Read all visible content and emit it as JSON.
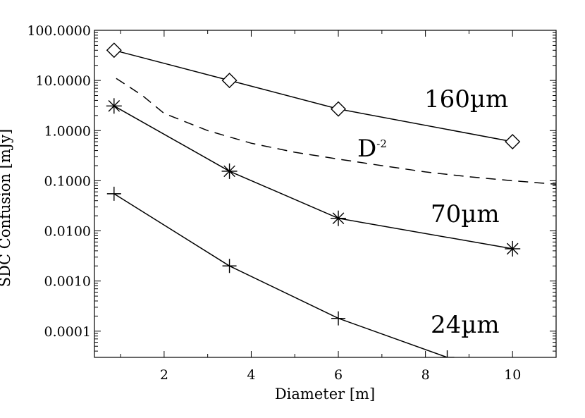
{
  "chart_data": {
    "type": "line",
    "title": "",
    "xlabel": "Diameter [m]",
    "ylabel": "SDC Confusion [mJy]",
    "xlim": [
      0.4,
      11
    ],
    "ylim": [
      3e-05,
      100
    ],
    "y_scale": "log",
    "x_ticks": [
      2,
      4,
      6,
      8,
      10
    ],
    "x_tick_labels": [
      "2",
      "4",
      "6",
      "8",
      "10"
    ],
    "y_ticks": [
      0.0001,
      0.001,
      0.01,
      0.1,
      1,
      10,
      100
    ],
    "y_tick_labels": [
      "0.0001",
      "0.0010",
      "0.0100",
      "0.1000",
      "1.0000",
      "10.0000",
      "100.0000"
    ],
    "grid": false,
    "legend": "none",
    "series": [
      {
        "name": "160µm",
        "marker": "diamond",
        "x": [
          0.85,
          3.5,
          6,
          10
        ],
        "y": [
          40,
          10,
          2.7,
          0.6
        ]
      },
      {
        "name": "70µm",
        "marker": "asterisk",
        "x": [
          0.85,
          3.5,
          6,
          10
        ],
        "y": [
          3.1,
          0.155,
          0.0178,
          0.0044
        ]
      },
      {
        "name": "24µm",
        "marker": "plus",
        "x": [
          0.85,
          3.5,
          6,
          8.5
        ],
        "y": [
          0.055,
          0.002,
          0.00018,
          3e-05
        ]
      },
      {
        "name": "D-2",
        "style": "dashed",
        "x": [
          0.9,
          1.5,
          2,
          3,
          4,
          5,
          6,
          7,
          8,
          9,
          10,
          11
        ],
        "y": [
          11,
          5,
          2.2,
          1.0,
          0.56,
          0.37,
          0.27,
          0.2,
          0.15,
          0.12,
          0.1,
          0.085
        ]
      }
    ],
    "annotations": {
      "series_160": "160µm",
      "series_70": "70µm",
      "series_24": "24µm",
      "ref_base": "D",
      "ref_exp": "-2"
    }
  }
}
